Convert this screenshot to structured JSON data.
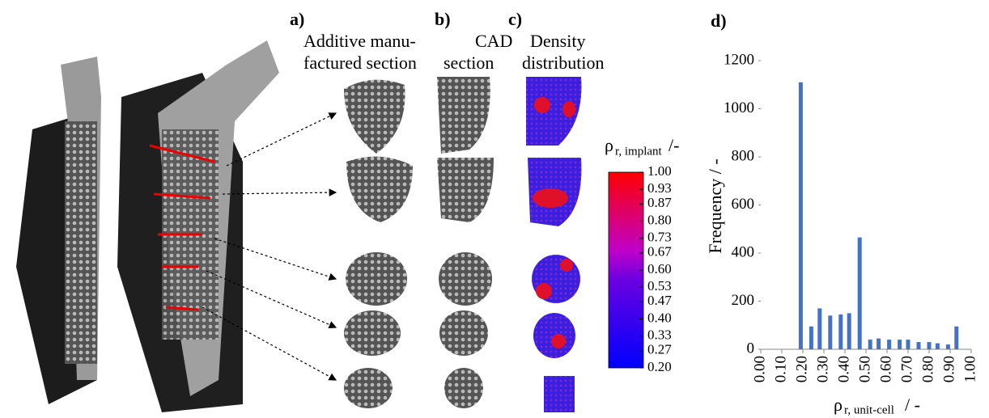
{
  "panels": {
    "a": {
      "label": "a)",
      "line1": "Additive manu-",
      "line2": "factured section"
    },
    "b": {
      "label": "b)",
      "line1": "CAD",
      "line2": "section"
    },
    "c": {
      "label": "c)",
      "line1": "Density",
      "line2": "distribution"
    },
    "colorbar": {
      "symbol": "ρ",
      "subscript": "r, implant",
      "unit": "/-",
      "lim": [
        0.2,
        1.0
      ],
      "ticks": [
        {
          "value": 1.0,
          "label": "1.00"
        },
        {
          "value": 0.93,
          "label": "0.93"
        },
        {
          "value": 0.87,
          "label": "0.87"
        },
        {
          "value": 0.8,
          "label": "0.80"
        },
        {
          "value": 0.73,
          "label": "0.73"
        },
        {
          "value": 0.67,
          "label": "0.67"
        },
        {
          "value": 0.6,
          "label": "0.60"
        },
        {
          "value": 0.53,
          "label": "0.53"
        },
        {
          "value": 0.47,
          "label": "0.47"
        },
        {
          "value": 0.4,
          "label": "0.40"
        },
        {
          "value": 0.33,
          "label": "0.33"
        },
        {
          "value": 0.27,
          "label": "0.27"
        },
        {
          "value": 0.2,
          "label": "0.20"
        }
      ]
    }
  },
  "chart_data": {
    "type": "bar",
    "panel_label": "d)",
    "y_label": "Frequency / -",
    "x_label": {
      "symbol": "ρ",
      "subscript": "r, unit-cell",
      "unit": "/ -"
    },
    "x": [
      0.19,
      0.24,
      0.28,
      0.33,
      0.38,
      0.42,
      0.47,
      0.52,
      0.56,
      0.61,
      0.66,
      0.7,
      0.75,
      0.8,
      0.84,
      0.89,
      0.93
    ],
    "values": [
      1110,
      95,
      170,
      140,
      145,
      150,
      465,
      40,
      45,
      40,
      40,
      40,
      30,
      30,
      25,
      20,
      95
    ],
    "color": "#4472c4",
    "xlim": [
      0,
      1
    ],
    "ylim": [
      0,
      1200
    ],
    "xticks": [
      {
        "value": 0,
        "label": "0.00"
      },
      {
        "value": 0.1,
        "label": "0.10"
      },
      {
        "value": 0.2,
        "label": "0.20"
      },
      {
        "value": 0.3,
        "label": "0.30"
      },
      {
        "value": 0.4,
        "label": "0.40"
      },
      {
        "value": 0.5,
        "label": "0.50"
      },
      {
        "value": 0.6,
        "label": "0.60"
      },
      {
        "value": 0.7,
        "label": "0.70"
      },
      {
        "value": 0.8,
        "label": "0.80"
      },
      {
        "value": 0.9,
        "label": "0.90"
      },
      {
        "value": 1,
        "label": "1.00"
      }
    ],
    "yticks": [
      0,
      200,
      400,
      600,
      800,
      1000,
      1200
    ]
  }
}
